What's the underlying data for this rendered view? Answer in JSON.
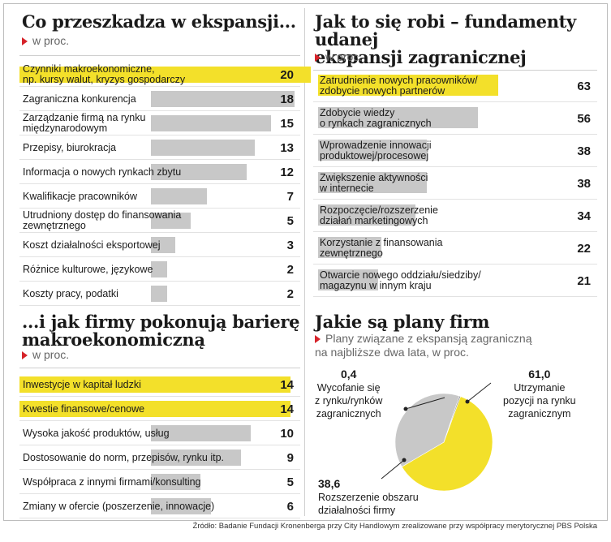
{
  "colors": {
    "highlight": "#f3e02a",
    "bar": "#c8c8c8",
    "pie_main": "#f3e02a",
    "pie_second": "#c8c8c8",
    "accent": "#d6232a"
  },
  "panels": {
    "p1": {
      "title": [
        "Co przeszkadza w ekspansji..."
      ],
      "unit": "w proc."
    },
    "p2": {
      "title": [
        "Jak to się robi – fundamenty udanej",
        "ekspansji zagranicznej"
      ],
      "unit": "w proc."
    },
    "p3": {
      "title": [
        "...i jak firmy pokonują barierę",
        "makroekonomiczną"
      ],
      "unit": "w proc."
    },
    "p4": {
      "title": [
        "Jakie są plany firm"
      ],
      "subtitle": [
        "Plany związane z ekspansją zagraniczną",
        "na najbliższe dwa lata, w proc."
      ]
    }
  },
  "source": "Źródło: Badanie Fundacji Kronenberga przy City Handlowym zrealizowane przy współpracy merytorycznej PBS Polska",
  "chart_data": [
    {
      "type": "bar",
      "title": "Co przeszkadza w ekspansji...",
      "unit": "w proc.",
      "categories": [
        "Czynniki makroekonomiczne,\nnp. kursy walut, kryzys gospodarczy",
        "Zagraniczna konkurencja",
        "Zarządzanie firmą na rynku\nmiędzynarodowym",
        "Przepisy, biurokracja",
        "Informacja o nowych rynkach zbytu",
        "Kwalifikacje pracowników",
        "Utrudniony dostęp do finansowania\nzewnętrznego",
        "Koszt działalności eksportowej",
        "Różnice kulturowe, językowe",
        "Koszty pracy, podatki"
      ],
      "values": [
        20,
        18,
        15,
        13,
        12,
        7,
        5,
        3,
        2,
        2
      ],
      "highlight": [
        0
      ],
      "xlim": [
        0,
        20
      ]
    },
    {
      "type": "bar",
      "title": "Jak to się robi – fundamenty udanej ekspansji zagranicznej",
      "unit": "w proc.",
      "categories": [
        "Zatrudnienie nowych pracowników/\nzdobycie nowych partnerów",
        "Zdobycie wiedzy\no rynkach zagranicznych",
        "Wprowadzenie innowacji\nproduktowej/procesowej",
        "Zwiększenie aktywności\nw internecie",
        "Rozpoczęcie/rozszerzenie\ndziałań marketingowych",
        "Korzystanie z finansowania\nzewnętrznego",
        "Otwarcie nowego oddziału/siedziby/\nmagazynu w innym kraju"
      ],
      "values": [
        63,
        56,
        38,
        38,
        34,
        22,
        21
      ],
      "highlight": [
        0
      ],
      "xlim": [
        0,
        63
      ]
    },
    {
      "type": "bar",
      "title": "...i jak firmy pokonują barierę makroekonomiczną",
      "unit": "w proc.",
      "categories": [
        "Inwestycje w kapitał ludzki",
        "Kwestie finansowe/cenowe",
        "Wysoka jakość produktów, usług",
        "Dostosowanie do norm, przepisów, rynku itp.",
        "Współpraca z innymi firmami/konsulting",
        "Zmiany w ofercie (poszerzenie, innowacje)"
      ],
      "values": [
        14,
        14,
        10,
        9,
        5,
        6
      ],
      "highlight": [
        0,
        1
      ],
      "xlim": [
        0,
        14
      ]
    },
    {
      "type": "pie",
      "title": "Jakie są plany firm",
      "subtitle": "Plany związane z ekspansją zagraniczną na najbliższe dwa lata, w proc.",
      "slices": [
        {
          "label": "Utrzymanie\npozycji na rynku\nzagranicznym",
          "value": 61.0,
          "value_text": "61,0"
        },
        {
          "label": "Rozszerzenie obszaru\ndziałalności firmy",
          "value": 38.6,
          "value_text": "38,6"
        },
        {
          "label": "Wycofanie się\nz rynku/rynków\nzagranicznych",
          "value": 0.4,
          "value_text": "0,4"
        }
      ]
    }
  ]
}
